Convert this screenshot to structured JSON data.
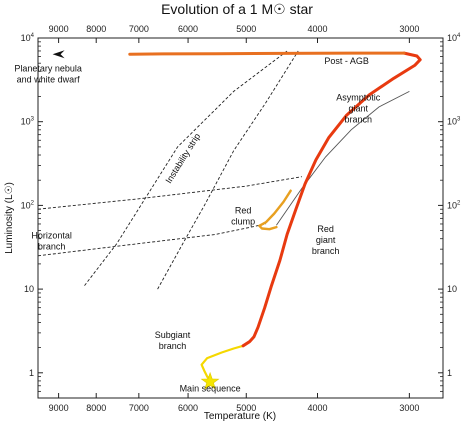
{
  "chart_data": {
    "type": "line",
    "title": "Evolution of a 1 M☉ star",
    "xlabel": "Temperature (K)",
    "ylabel": "Luminosity (L☉)",
    "x_scale": "log",
    "x_reversed": true,
    "y_scale": "log",
    "xlim": [
      9600,
      2700
    ],
    "ylim": [
      0.5,
      10000
    ],
    "x_ticks": [
      {
        "value": 9000,
        "label": "9000"
      },
      {
        "value": 8000,
        "label": "8000"
      },
      {
        "value": 7000,
        "label": "7000"
      },
      {
        "value": 6000,
        "label": "6000"
      },
      {
        "value": 5000,
        "label": "5000"
      },
      {
        "value": 4000,
        "label": "4000"
      },
      {
        "value": 3000,
        "label": "3000"
      }
    ],
    "y_ticks": [
      {
        "value": 10000,
        "base": "10",
        "exp": "4"
      },
      {
        "value": 1000,
        "base": "10",
        "exp": "3"
      },
      {
        "value": 100,
        "base": "10",
        "exp": "2"
      },
      {
        "value": 10,
        "base": "10",
        "exp": ""
      },
      {
        "value": 1,
        "base": "1",
        "exp": ""
      }
    ],
    "grid": false,
    "series": [
      {
        "color": "#f5d800",
        "points": [
          [
            5600,
            0.8
          ],
          [
            5650,
            0.9
          ],
          [
            5700,
            1.05
          ],
          [
            5750,
            1.25
          ],
          [
            5650,
            1.5
          ],
          [
            5400,
            1.75
          ],
          [
            5200,
            1.95
          ],
          [
            5050,
            2.1
          ]
        ]
      },
      {
        "color": "#e83a10",
        "points": [
          [
            5050,
            2.1
          ],
          [
            4950,
            2.35
          ],
          [
            4880,
            2.7
          ],
          [
            4820,
            3.5
          ],
          [
            4720,
            6
          ],
          [
            4620,
            11
          ],
          [
            4500,
            22
          ],
          [
            4400,
            45
          ],
          [
            4280,
            90
          ],
          [
            4160,
            180
          ],
          [
            4020,
            350
          ],
          [
            3860,
            650
          ],
          [
            3650,
            1200
          ],
          [
            3400,
            2100
          ],
          [
            3150,
            3300
          ],
          [
            2950,
            4700
          ],
          [
            2900,
            5500
          ],
          [
            2930,
            6100
          ],
          [
            3050,
            6600
          ]
        ]
      },
      {
        "color": "#e8a020",
        "points": [
          [
            4350,
            150
          ],
          [
            4450,
            110
          ],
          [
            4580,
            80
          ],
          [
            4700,
            63
          ],
          [
            4800,
            57
          ],
          [
            4760,
            53
          ],
          [
            4650,
            52
          ],
          [
            4550,
            55
          ]
        ]
      },
      {
        "color": "#e87020",
        "points": [
          [
            3050,
            6600
          ],
          [
            3600,
            6600
          ],
          [
            4500,
            6550
          ],
          [
            5500,
            6500
          ],
          [
            6500,
            6450
          ],
          [
            7200,
            6400
          ]
        ]
      }
    ],
    "thin_track": {
      "color": "#555555",
      "points": [
        [
          3000,
          2300
        ],
        [
          3300,
          1500
        ],
        [
          3600,
          800
        ],
        [
          3900,
          380
        ],
        [
          4200,
          160
        ],
        [
          4550,
          58
        ]
      ]
    },
    "instability_strip": {
      "blue_edge": [
        [
          8300,
          11
        ],
        [
          7500,
          35
        ],
        [
          6200,
          500
        ],
        [
          5200,
          2300
        ],
        [
          4400,
          7000
        ]
      ],
      "red_edge": [
        [
          6600,
          10
        ],
        [
          6100,
          35
        ],
        [
          5700,
          100
        ],
        [
          5200,
          450
        ],
        [
          4700,
          1700
        ],
        [
          4250,
          7000
        ]
      ]
    },
    "horizontal_branch": {
      "upper": [
        [
          9600,
          90
        ],
        [
          7000,
          120
        ],
        [
          5000,
          170
        ],
        [
          4200,
          220
        ]
      ],
      "lower": [
        [
          9600,
          25
        ],
        [
          7000,
          35
        ],
        [
          5500,
          45
        ],
        [
          4700,
          60
        ]
      ]
    },
    "marker_arrow": {
      "x": 9000,
      "y": 6400
    },
    "marker_star": {
      "x": 5600,
      "y": 0.78,
      "color": "#f5e600"
    },
    "annotations": [
      {
        "id": "planetary",
        "lines": [
          "Planetary nebula",
          "and white dwarf"
        ],
        "x": 9300,
        "y": 4000
      },
      {
        "id": "post-agb",
        "lines": [
          "Post - AGB"
        ],
        "x": 3650,
        "y": 4900
      },
      {
        "id": "agb",
        "lines": [
          "Asymptotic",
          "giant",
          "branch"
        ],
        "x": 3520,
        "y": 1800
      },
      {
        "id": "instability",
        "lines": [
          "Instability strip"
        ],
        "x": 6050,
        "y": 350,
        "rotate": -58
      },
      {
        "id": "horizontal",
        "lines": [
          "Horizontal",
          "branch"
        ],
        "x": 9200,
        "y": 40
      },
      {
        "id": "red-clump",
        "lines": [
          "Red",
          "clump"
        ],
        "x": 5050,
        "y": 80
      },
      {
        "id": "red-giant",
        "lines": [
          "Red",
          "giant",
          "branch"
        ],
        "x": 3900,
        "y": 48
      },
      {
        "id": "subgiant",
        "lines": [
          "Subgiant",
          "branch"
        ],
        "x": 6300,
        "y": 2.6
      },
      {
        "id": "main-sequence",
        "lines": [
          "Main sequence"
        ],
        "x": 5600,
        "y": 0.6
      }
    ]
  }
}
